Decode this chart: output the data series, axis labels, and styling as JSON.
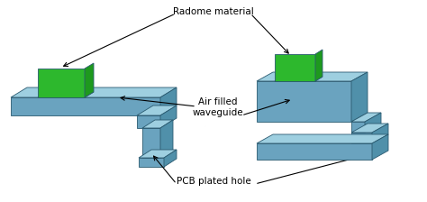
{
  "bg_color": "#ffffff",
  "blue_top": "#8bbdd4",
  "blue_front": "#6aa3bf",
  "blue_side": "#5090aa",
  "blue_top2": "#9ecfe0",
  "green_top": "#4cd44c",
  "green_front": "#2db82d",
  "green_side": "#1e991e",
  "edge_color": "#2a5a70",
  "text_color": "#000000",
  "annotations": {
    "radome_material": "Radome material",
    "air_filled": "Air filled\nwaveguide",
    "pcb_plated": "PCB plated hole"
  },
  "fig_width": 4.74,
  "fig_height": 2.24,
  "dpi": 100
}
